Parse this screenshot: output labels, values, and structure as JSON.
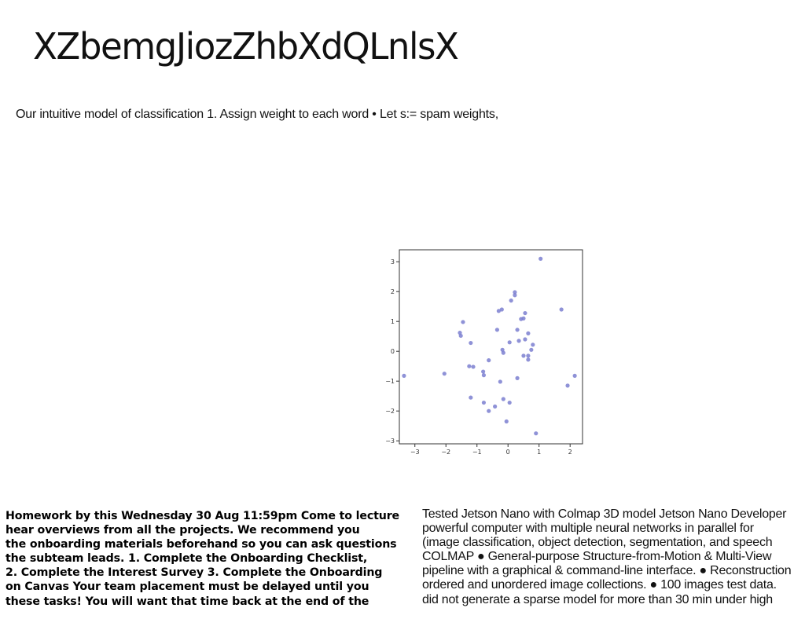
{
  "page": {
    "title": "XZbemgJiozZhbXdQLnlsX",
    "subtitle": "Our intuitive model of classification 1. Assign weight to each word • Let s:= spam weights,"
  },
  "left_text": {
    "lines": [
      "Homework by this Wednesday 30 Aug 11:59pm Come to lecture",
      "hear overviews from all the projects. We recommend you",
      "the onboarding materials beforehand so you can ask questions",
      "the subteam leads. 1. Complete the Onboarding Checklist,",
      "2. Complete the Interest Survey 3. Complete the Onboarding",
      "on Canvas Your team placement must be delayed until you",
      "these tasks! You will want that time back at the end of the"
    ]
  },
  "right_text": {
    "lines": [
      "Tested Jetson Nano with Colmap 3D model Jetson Nano Developer",
      "powerful computer with multiple neural networks in parallel for",
      "(image classification, object detection, segmentation, and speech",
      "COLMAP ● General-purpose Structure-from-Motion & Multi-View",
      "pipeline with a graphical & command-line interface. ● Reconstruction",
      "ordered and unordered image collections. ● 100 images test data.",
      "did not generate a sparse model for more than 30 min under high"
    ]
  },
  "chart_data": {
    "type": "scatter",
    "xlim": [
      -3.5,
      2.4
    ],
    "ylim": [
      -3.1,
      3.4
    ],
    "xticks": [
      "−3",
      "−2",
      "−1",
      "0",
      "1",
      "2"
    ],
    "yticks": [
      "−3",
      "−2",
      "−1",
      "0",
      "1",
      "2",
      "3"
    ],
    "grid": false,
    "color": "#7b7fd0",
    "points": [
      [
        1.05,
        3.1
      ],
      [
        0.22,
        1.98
      ],
      [
        0.22,
        1.88
      ],
      [
        0.1,
        1.7
      ],
      [
        -0.2,
        1.4
      ],
      [
        -0.3,
        1.35
      ],
      [
        0.55,
        1.28
      ],
      [
        0.5,
        1.1
      ],
      [
        0.42,
        1.08
      ],
      [
        1.72,
        1.4
      ],
      [
        -1.45,
        0.98
      ],
      [
        -1.55,
        0.62
      ],
      [
        -1.52,
        0.52
      ],
      [
        -0.35,
        0.72
      ],
      [
        0.3,
        0.72
      ],
      [
        0.65,
        0.6
      ],
      [
        -1.2,
        0.28
      ],
      [
        0.05,
        0.3
      ],
      [
        0.35,
        0.35
      ],
      [
        0.55,
        0.4
      ],
      [
        0.8,
        0.22
      ],
      [
        0.75,
        0.05
      ],
      [
        -0.18,
        0.05
      ],
      [
        -0.15,
        -0.05
      ],
      [
        0.5,
        -0.15
      ],
      [
        0.65,
        -0.15
      ],
      [
        0.65,
        -0.28
      ],
      [
        -0.62,
        -0.3
      ],
      [
        -1.25,
        -0.5
      ],
      [
        -1.12,
        -0.52
      ],
      [
        -0.8,
        -0.68
      ],
      [
        -0.78,
        -0.8
      ],
      [
        -2.05,
        -0.75
      ],
      [
        -3.35,
        -0.82
      ],
      [
        2.15,
        -0.82
      ],
      [
        0.3,
        -0.9
      ],
      [
        -0.25,
        -1.02
      ],
      [
        1.92,
        -1.15
      ],
      [
        -1.2,
        -1.55
      ],
      [
        -0.15,
        -1.6
      ],
      [
        0.05,
        -1.72
      ],
      [
        -0.78,
        -1.72
      ],
      [
        -0.42,
        -1.85
      ],
      [
        -0.62,
        -2.0
      ],
      [
        -0.05,
        -2.35
      ],
      [
        0.9,
        -2.75
      ]
    ]
  }
}
